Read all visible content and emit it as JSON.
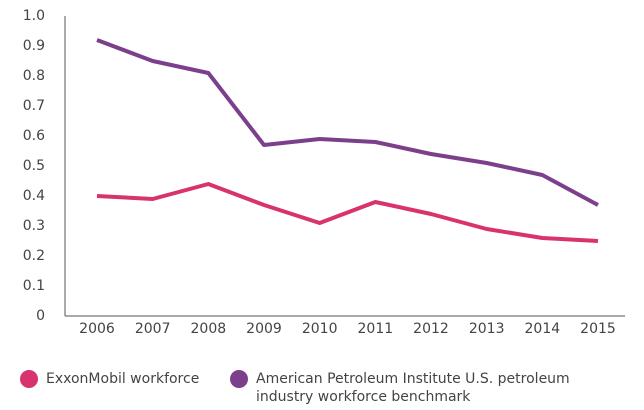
{
  "chart_data": {
    "type": "line",
    "categories": [
      "2006",
      "2007",
      "2008",
      "2009",
      "2010",
      "2011",
      "2012",
      "2013",
      "2014",
      "2015"
    ],
    "series": [
      {
        "name": "ExxonMobil workforce",
        "color": "#d9336f",
        "values": [
          0.4,
          0.39,
          0.44,
          0.37,
          0.31,
          0.38,
          0.34,
          0.29,
          0.26,
          0.25
        ]
      },
      {
        "name": "American Petroleum Institute U.S. petroleum industry workforce benchmark",
        "color": "#7b3f8c",
        "values": [
          0.92,
          0.85,
          0.81,
          0.57,
          0.59,
          0.58,
          0.54,
          0.51,
          0.47,
          0.37
        ]
      }
    ],
    "ylim": [
      0,
      1
    ],
    "yticks": [
      0,
      0.1,
      0.2,
      0.3,
      0.4,
      0.5,
      0.6,
      0.7,
      0.8,
      0.9,
      {
        "value": 1,
        "label": "1.0"
      }
    ],
    "grid": false,
    "legend": "bottom"
  }
}
